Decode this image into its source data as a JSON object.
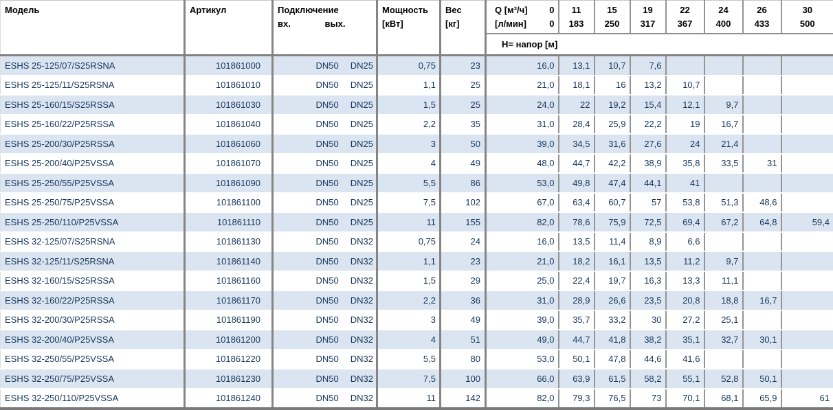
{
  "colors": {
    "row_stripe": "#dbe5f1",
    "body_text": "#17365d",
    "grid_line": "#8e8e8e",
    "header_text": "#000000"
  },
  "table": {
    "header": {
      "model": "Модель",
      "article": "Артикул",
      "connection": "Подключение",
      "connection_in": "вх.",
      "connection_out": "вых.",
      "power": "Мощность",
      "power_unit": "[кВт]",
      "weight": "Вес",
      "weight_unit": "[кг]",
      "q_m3h_label": "Q [м³/ч]",
      "q_m3h_zero": "0",
      "q_lmin_label": "[л/мин]",
      "q_lmin_zero": "0",
      "head_label": "H= напор [м]",
      "q_columns": [
        {
          "m3h": "11",
          "lmin": "183"
        },
        {
          "m3h": "15",
          "lmin": "250"
        },
        {
          "m3h": "19",
          "lmin": "317"
        },
        {
          "m3h": "22",
          "lmin": "367"
        },
        {
          "m3h": "24",
          "lmin": "400"
        },
        {
          "m3h": "26",
          "lmin": "433"
        },
        {
          "m3h": "30",
          "lmin": "500"
        }
      ]
    },
    "rows": [
      {
        "model": "ESHS 25-125/07/S25RSNA",
        "article": "101861000",
        "in": "DN50",
        "out": "DN25",
        "power": "0,75",
        "weight": "23",
        "h": [
          "16,0",
          "13,1",
          "10,7",
          "7,6",
          "",
          "",
          "",
          ""
        ]
      },
      {
        "model": "ESHS 25-125/11/S25RSNA",
        "article": "101861010",
        "in": "DN50",
        "out": "DN25",
        "power": "1,1",
        "weight": "25",
        "h": [
          "21,0",
          "18,1",
          "16",
          "13,2",
          "10,7",
          "",
          "",
          ""
        ]
      },
      {
        "model": "ESHS 25-160/15/S25RSSA",
        "article": "101861030",
        "in": "DN50",
        "out": "DN25",
        "power": "1,5",
        "weight": "25",
        "h": [
          "24,0",
          "22",
          "19,2",
          "15,4",
          "12,1",
          "9,7",
          "",
          ""
        ]
      },
      {
        "model": "ESHS 25-160/22/P25RSSA",
        "article": "101861040",
        "in": "DN50",
        "out": "DN25",
        "power": "2,2",
        "weight": "35",
        "h": [
          "31,0",
          "28,4",
          "25,9",
          "22,2",
          "19",
          "16,7",
          "",
          ""
        ]
      },
      {
        "model": "ESHS 25-200/30/P25RSSA",
        "article": "101861060",
        "in": "DN50",
        "out": "DN25",
        "power": "3",
        "weight": "50",
        "h": [
          "39,0",
          "34,5",
          "31,6",
          "27,6",
          "24",
          "21,4",
          "",
          ""
        ]
      },
      {
        "model": "ESHS 25-200/40/P25VSSA",
        "article": "101861070",
        "in": "DN50",
        "out": "DN25",
        "power": "4",
        "weight": "49",
        "h": [
          "48,0",
          "44,7",
          "42,2",
          "38,9",
          "35,8",
          "33,5",
          "31",
          ""
        ]
      },
      {
        "model": "ESHS 25-250/55/P25VSSA",
        "article": "101861090",
        "in": "DN50",
        "out": "DN25",
        "power": "5,5",
        "weight": "86",
        "h": [
          "53,0",
          "49,8",
          "47,4",
          "44,1",
          "41",
          "",
          "",
          ""
        ]
      },
      {
        "model": "ESHS 25-250/75/P25VSSA",
        "article": "101861100",
        "in": "DN50",
        "out": "DN25",
        "power": "7,5",
        "weight": "102",
        "h": [
          "67,0",
          "63,4",
          "60,7",
          "57",
          "53,8",
          "51,3",
          "48,6",
          ""
        ]
      },
      {
        "model": "ESHS 25-250/110/P25VSSA",
        "article": "101861110",
        "in": "DN50",
        "out": "DN25",
        "power": "11",
        "weight": "155",
        "h": [
          "82,0",
          "78,6",
          "75,9",
          "72,5",
          "69,4",
          "67,2",
          "64,8",
          "59,4"
        ]
      },
      {
        "model": "ESHS 32-125/07/S25RSNA",
        "article": "101861130",
        "in": "DN50",
        "out": "DN32",
        "power": "0,75",
        "weight": "24",
        "h": [
          "16,0",
          "13,5",
          "11,4",
          "8,9",
          "6,6",
          "",
          "",
          ""
        ]
      },
      {
        "model": "ESHS 32-125/11/S25RSNA",
        "article": "101861140",
        "in": "DN50",
        "out": "DN32",
        "power": "1,1",
        "weight": "23",
        "h": [
          "21,0",
          "18,2",
          "16,1",
          "13,5",
          "11,2",
          "9,7",
          "",
          ""
        ]
      },
      {
        "model": "ESHS 32-160/15/S25RSSA",
        "article": "101861160",
        "in": "DN50",
        "out": "DN32",
        "power": "1,5",
        "weight": "29",
        "h": [
          "25,0",
          "22,4",
          "19,7",
          "16,3",
          "13,3",
          "11,1",
          "",
          ""
        ]
      },
      {
        "model": "ESHS 32-160/22/P25RSSA",
        "article": "101861170",
        "in": "DN50",
        "out": "DN32",
        "power": "2,2",
        "weight": "36",
        "h": [
          "31,0",
          "28,9",
          "26,6",
          "23,5",
          "20,8",
          "18,8",
          "16,7",
          ""
        ]
      },
      {
        "model": "ESHS 32-200/30/P25RSSA",
        "article": "101861190",
        "in": "DN50",
        "out": "DN32",
        "power": "3",
        "weight": "49",
        "h": [
          "39,0",
          "35,7",
          "33,2",
          "30",
          "27,2",
          "25,1",
          "",
          ""
        ]
      },
      {
        "model": "ESHS 32-200/40/P25VSSA",
        "article": "101861200",
        "in": "DN50",
        "out": "DN32",
        "power": "4",
        "weight": "51",
        "h": [
          "49,0",
          "44,7",
          "41,8",
          "38,2",
          "35,1",
          "32,7",
          "30,1",
          ""
        ]
      },
      {
        "model": "ESHS 32-250/55/P25VSSA",
        "article": "101861220",
        "in": "DN50",
        "out": "DN32",
        "power": "5,5",
        "weight": "80",
        "h": [
          "53,0",
          "50,1",
          "47,8",
          "44,6",
          "41,6",
          "",
          "",
          ""
        ]
      },
      {
        "model": "ESHS 32-250/75/P25VSSA",
        "article": "101861230",
        "in": "DN50",
        "out": "DN32",
        "power": "7,5",
        "weight": "100",
        "h": [
          "66,0",
          "63,9",
          "61,5",
          "58,2",
          "55,1",
          "52,8",
          "50,1",
          ""
        ]
      },
      {
        "model": "ESHS 32-250/110/P25VSSA",
        "article": "101861240",
        "in": "DN50",
        "out": "DN32",
        "power": "11",
        "weight": "142",
        "h": [
          "82,0",
          "79,3",
          "76,5",
          "73",
          "70,1",
          "68,1",
          "65,9",
          "61"
        ]
      }
    ]
  }
}
